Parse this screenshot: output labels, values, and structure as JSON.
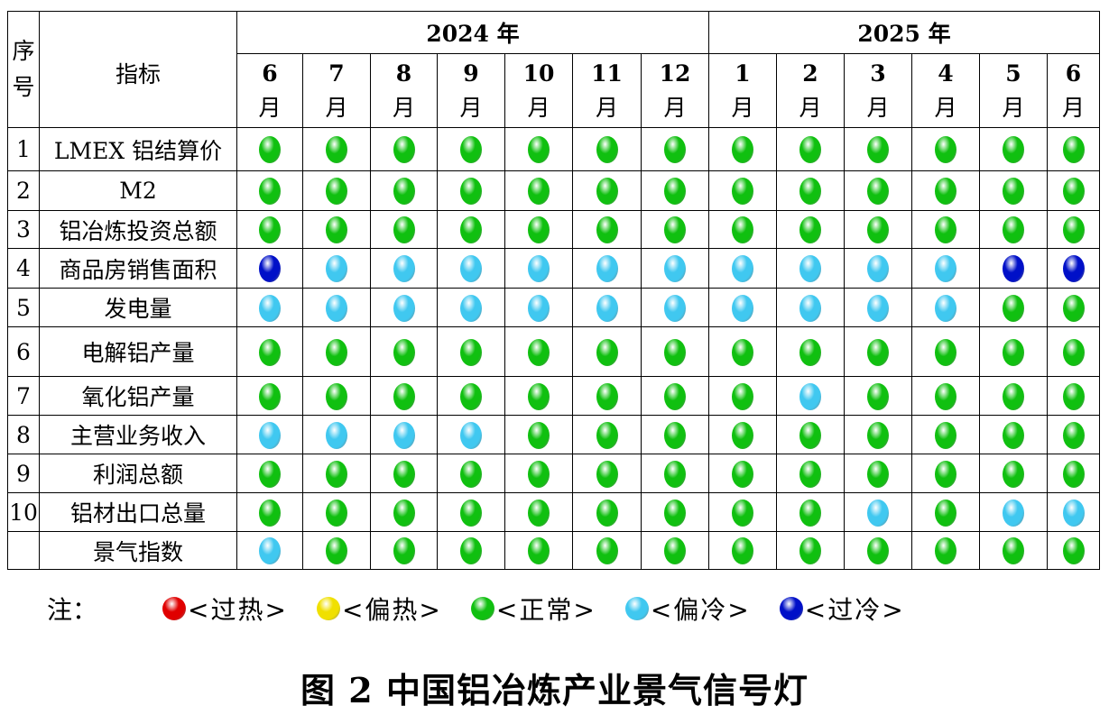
{
  "header": {
    "seq": "序号",
    "indicator": "指标",
    "years": [
      {
        "label": "2024 年",
        "span": 7
      },
      {
        "label": "2025 年",
        "span": 6
      }
    ],
    "months": [
      "6",
      "7",
      "8",
      "9",
      "10",
      "11",
      "12",
      "1",
      "2",
      "3",
      "4",
      "5",
      "6"
    ],
    "month_unit": "月"
  },
  "colors": {
    "hot": "#e00000",
    "warm": "#f0e000",
    "normal": "#10c010",
    "cool": "#40c8f0",
    "cold": "#0010c8"
  },
  "rows": [
    {
      "seq": "1",
      "name": "LMEX 铝结算价",
      "signals": [
        "normal",
        "normal",
        "normal",
        "normal",
        "normal",
        "normal",
        "normal",
        "normal",
        "normal",
        "normal",
        "normal",
        "normal",
        "normal"
      ]
    },
    {
      "seq": "2",
      "name": "M2",
      "signals": [
        "normal",
        "normal",
        "normal",
        "normal",
        "normal",
        "normal",
        "normal",
        "normal",
        "normal",
        "normal",
        "normal",
        "normal",
        "normal"
      ]
    },
    {
      "seq": "3",
      "name": "铝冶炼投资总额",
      "signals": [
        "normal",
        "normal",
        "normal",
        "normal",
        "normal",
        "normal",
        "normal",
        "normal",
        "normal",
        "normal",
        "normal",
        "normal",
        "normal"
      ]
    },
    {
      "seq": "4",
      "name": "商品房销售面积",
      "signals": [
        "cold",
        "cool",
        "cool",
        "cool",
        "cool",
        "cool",
        "cool",
        "cool",
        "cool",
        "cool",
        "cool",
        "cold",
        "cold"
      ]
    },
    {
      "seq": "5",
      "name": "发电量",
      "signals": [
        "cool",
        "cool",
        "cool",
        "cool",
        "cool",
        "cool",
        "cool",
        "cool",
        "cool",
        "cool",
        "cool",
        "normal",
        "normal"
      ]
    },
    {
      "seq": "6",
      "name": "电解铝产量",
      "signals": [
        "normal",
        "normal",
        "normal",
        "normal",
        "normal",
        "normal",
        "normal",
        "normal",
        "normal",
        "normal",
        "normal",
        "normal",
        "normal"
      ]
    },
    {
      "seq": "7",
      "name": "氧化铝产量",
      "signals": [
        "normal",
        "normal",
        "normal",
        "normal",
        "normal",
        "normal",
        "normal",
        "normal",
        "cool",
        "normal",
        "normal",
        "normal",
        "normal"
      ]
    },
    {
      "seq": "8",
      "name": "主营业务收入",
      "signals": [
        "cool",
        "cool",
        "cool",
        "cool",
        "normal",
        "normal",
        "normal",
        "normal",
        "normal",
        "normal",
        "normal",
        "normal",
        "normal"
      ]
    },
    {
      "seq": "9",
      "name": "利润总额",
      "signals": [
        "normal",
        "normal",
        "normal",
        "normal",
        "normal",
        "normal",
        "normal",
        "normal",
        "normal",
        "normal",
        "normal",
        "normal",
        "normal"
      ]
    },
    {
      "seq": "10",
      "name": "铝材出口总量",
      "signals": [
        "normal",
        "normal",
        "normal",
        "normal",
        "normal",
        "normal",
        "normal",
        "normal",
        "normal",
        "cool",
        "normal",
        "cool",
        "cool"
      ]
    },
    {
      "seq": "",
      "name": "景气指数",
      "signals": [
        "cool",
        "normal",
        "normal",
        "normal",
        "normal",
        "normal",
        "normal",
        "normal",
        "normal",
        "normal",
        "normal",
        "normal",
        "normal"
      ]
    }
  ],
  "legend": {
    "note": "注：",
    "items": [
      {
        "key": "hot",
        "label": "<过热>"
      },
      {
        "key": "warm",
        "label": "<偏热>"
      },
      {
        "key": "normal",
        "label": "<正常>"
      },
      {
        "key": "cool",
        "label": "<偏冷>"
      },
      {
        "key": "cold",
        "label": "<过冷>"
      }
    ]
  },
  "caption": "图 2  中国铝冶炼产业景气信号灯"
}
